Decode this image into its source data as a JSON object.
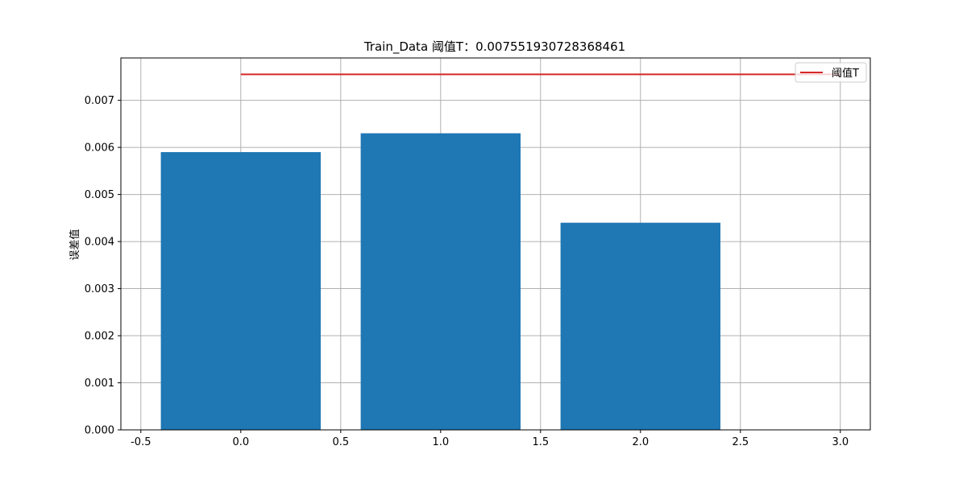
{
  "chart_data": {
    "type": "bar",
    "title": "Train_Data  阈值T：0.007551930728368461",
    "xlabel": "",
    "ylabel": "误差值",
    "x": [
      0,
      1,
      2
    ],
    "values": [
      0.0059,
      0.0063,
      0.0044
    ],
    "bar_width": 0.8,
    "bar_color": "#1f77b4",
    "xlim": [
      -0.6,
      3.15
    ],
    "ylim": [
      0.0,
      0.0079
    ],
    "xticks": [
      -0.5,
      0.0,
      0.5,
      1.0,
      1.5,
      2.0,
      2.5,
      3.0
    ],
    "xtick_labels": [
      "-0.5",
      "0.0",
      "0.5",
      "1.0",
      "1.5",
      "2.0",
      "2.5",
      "3.0"
    ],
    "yticks": [
      0.0,
      0.001,
      0.002,
      0.003,
      0.004,
      0.005,
      0.006,
      0.007
    ],
    "ytick_labels": [
      "0.000",
      "0.001",
      "0.002",
      "0.003",
      "0.004",
      "0.005",
      "0.006",
      "0.007"
    ],
    "threshold": {
      "name": "阈值T",
      "value": 0.007551930728368461,
      "x_range": [
        0,
        3
      ],
      "color": "#d62728"
    },
    "grid": true,
    "legend_placement": "top-right"
  }
}
